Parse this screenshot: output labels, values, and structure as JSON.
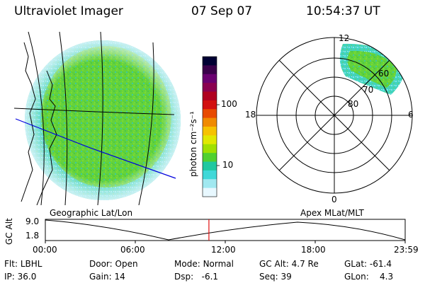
{
  "header": {
    "instrument": "Ultraviolet Imager",
    "date": "07 Sep 07",
    "time": "10:54:37 UT"
  },
  "geo_panel": {
    "label": "Geographic Lat/Lon"
  },
  "colorbar": {
    "unit_label": "photon cm⁻²s⁻¹",
    "ticks": [
      "100",
      "10"
    ],
    "colors": [
      "#000033",
      "#3a004a",
      "#6a0070",
      "#8a0050",
      "#b00020",
      "#d21010",
      "#e84a00",
      "#f08a00",
      "#f6c200",
      "#e0e800",
      "#a0e000",
      "#50d030",
      "#20c8a0",
      "#40d8d8",
      "#a0e8f0",
      "#e8f8ff"
    ]
  },
  "polar_panel": {
    "label": "Apex MLat/MLT",
    "mlt_labels": {
      "top": "12",
      "left": "18",
      "right": "6",
      "bottom": "0"
    },
    "lat_labels": [
      "60",
      "70",
      "80"
    ]
  },
  "timeline": {
    "ylabel": "GC Alt",
    "y_ticks": [
      "9.0",
      "1.8"
    ],
    "x_ticks": [
      "00:00",
      "06:00",
      "12:00",
      "18:00",
      "23:59"
    ],
    "current_time_fraction": 0.4546
  },
  "info": {
    "flt_label": "Flt:",
    "flt_value": "LBHL",
    "ip_label": "IP:",
    "ip_value": "36.0",
    "door_label": "Door:",
    "door_value": "Open",
    "gain_label": "Gain:",
    "gain_value": "14",
    "mode_label": "Mode:",
    "mode_value": "Normal",
    "dsp_label": "Dsp:",
    "dsp_value": "-6.1",
    "gcalt_label": "GC Alt:",
    "gcalt_value": "4.7 Re",
    "seq_label": "Seq:",
    "seq_value": "39",
    "glat_label": "GLat:",
    "glat_value": "-61.4",
    "glon_label": "GLon:",
    "glon_value": "4.3"
  },
  "colors": {
    "aurora_main": "#64d23c",
    "aurora_edge": "#3cd2b4",
    "aurora_faint": "#b4ecf4",
    "marker": "#e01010",
    "geo_line": "#0000dd"
  }
}
